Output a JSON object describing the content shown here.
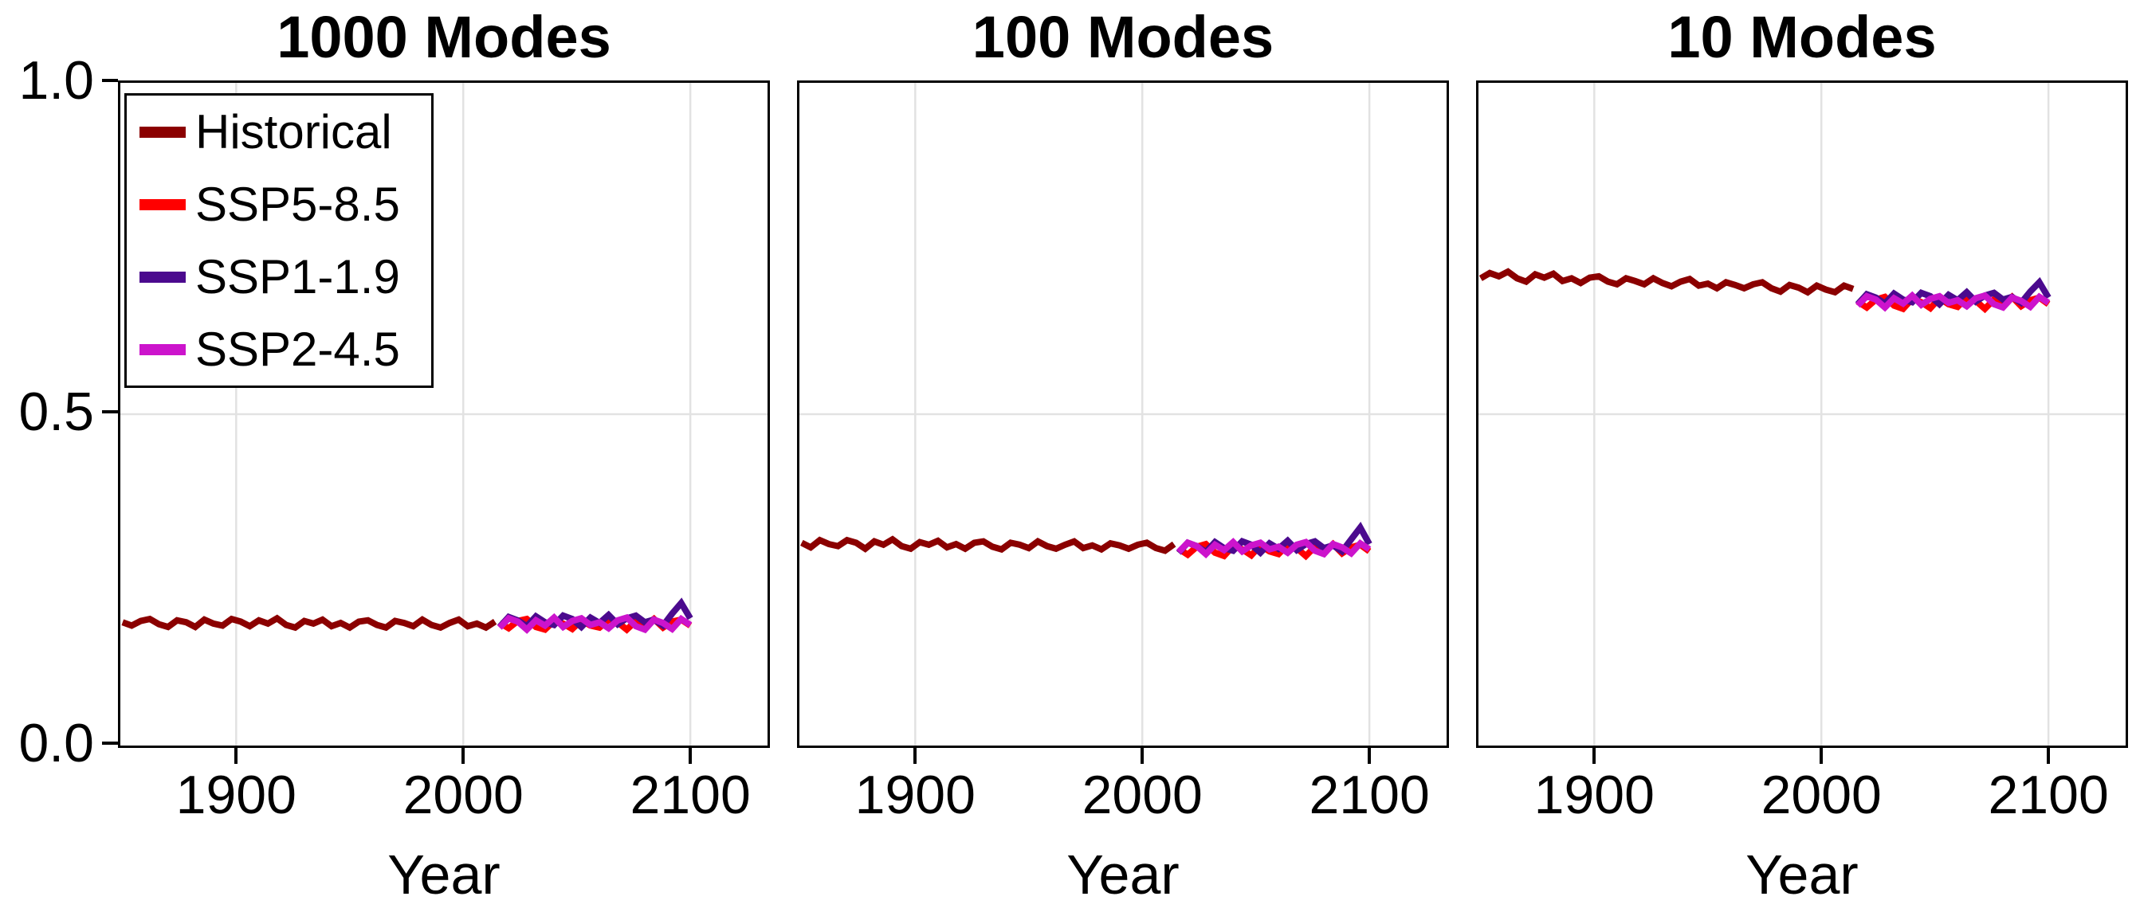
{
  "figure": {
    "background": "#FFFFFF",
    "axis_color": "#000000",
    "grid_color": "#E2E2E2",
    "ytick_labels": [
      "1.0",
      "0.5",
      "0.0"
    ],
    "legend": {
      "position": "upper left",
      "entries": [
        {
          "label": "Historical",
          "color": "#8B0000"
        },
        {
          "label": "SSP5-8.5",
          "color": "#FF0000"
        },
        {
          "label": "SSP1-1.9",
          "color": "#4B0A8E"
        },
        {
          "label": "SSP2-4.5",
          "color": "#CC14CC"
        }
      ]
    }
  },
  "chart_data": [
    {
      "type": "line",
      "title": "1000 Modes",
      "xlabel": "Year",
      "ylabel": "",
      "xlim": [
        1849,
        2134
      ],
      "ylim": [
        0.0,
        1.0
      ],
      "xticks": [
        1900,
        2000,
        2100
      ],
      "xtick_labels": [
        "1900",
        "2000",
        "2100"
      ],
      "yticks": [
        0.0,
        0.5,
        1.0
      ],
      "grid": true,
      "series": [
        {
          "name": "Historical",
          "color": "#8B0000",
          "x_start": 1850,
          "x_step": 4,
          "values": [
            0.186,
            0.181,
            0.188,
            0.191,
            0.183,
            0.179,
            0.189,
            0.186,
            0.179,
            0.19,
            0.184,
            0.181,
            0.191,
            0.187,
            0.18,
            0.189,
            0.184,
            0.192,
            0.182,
            0.178,
            0.188,
            0.184,
            0.19,
            0.18,
            0.185,
            0.178,
            0.187,
            0.189,
            0.182,
            0.178,
            0.188,
            0.185,
            0.18,
            0.19,
            0.182,
            0.178,
            0.185,
            0.19,
            0.18,
            0.184,
            0.178,
            0.187
          ]
        },
        {
          "name": "SSP5-8.5",
          "color": "#FF0000",
          "x_start": 2016,
          "x_step": 4,
          "values": [
            0.185,
            0.177,
            0.188,
            0.191,
            0.179,
            0.175,
            0.188,
            0.184,
            0.176,
            0.189,
            0.181,
            0.178,
            0.19,
            0.186,
            0.175,
            0.188,
            0.18,
            0.191,
            0.178,
            0.187,
            0.19,
            0.181
          ]
        },
        {
          "name": "SSP1-1.9",
          "color": "#4B0A8E",
          "x_start": 2016,
          "x_step": 4,
          "values": [
            0.179,
            0.194,
            0.189,
            0.18,
            0.195,
            0.186,
            0.182,
            0.196,
            0.191,
            0.179,
            0.193,
            0.185,
            0.197,
            0.183,
            0.192,
            0.196,
            0.186,
            0.19,
            0.181,
            0.199,
            0.215,
            0.192
          ]
        },
        {
          "name": "SSP2-4.5",
          "color": "#CC14CC",
          "x_start": 2016,
          "x_step": 4,
          "values": [
            0.178,
            0.192,
            0.187,
            0.175,
            0.189,
            0.181,
            0.193,
            0.179,
            0.188,
            0.192,
            0.182,
            0.186,
            0.177,
            0.189,
            0.193,
            0.18,
            0.175,
            0.19,
            0.185,
            0.176,
            0.191,
            0.182
          ]
        }
      ]
    },
    {
      "type": "line",
      "title": "100 Modes",
      "xlabel": "Year",
      "ylabel": "",
      "xlim": [
        1849,
        2134
      ],
      "ylim": [
        0.0,
        1.0
      ],
      "xticks": [
        1900,
        2000,
        2100
      ],
      "xtick_labels": [
        "1900",
        "2000",
        "2100"
      ],
      "yticks": [
        0.0,
        0.5,
        1.0
      ],
      "grid": true,
      "series": [
        {
          "name": "Historical",
          "color": "#8B0000",
          "x_start": 1850,
          "x_step": 4,
          "values": [
            0.306,
            0.299,
            0.31,
            0.304,
            0.301,
            0.31,
            0.306,
            0.297,
            0.308,
            0.303,
            0.311,
            0.301,
            0.297,
            0.307,
            0.303,
            0.309,
            0.299,
            0.304,
            0.297,
            0.306,
            0.308,
            0.3,
            0.296,
            0.306,
            0.303,
            0.298,
            0.308,
            0.301,
            0.297,
            0.303,
            0.308,
            0.298,
            0.302,
            0.296,
            0.305,
            0.302,
            0.297,
            0.303,
            0.306,
            0.298,
            0.294,
            0.304
          ]
        },
        {
          "name": "SSP5-8.5",
          "color": "#FF0000",
          "x_start": 2016,
          "x_step": 4,
          "values": [
            0.297,
            0.288,
            0.3,
            0.304,
            0.291,
            0.286,
            0.301,
            0.296,
            0.287,
            0.302,
            0.293,
            0.289,
            0.303,
            0.298,
            0.286,
            0.3,
            0.292,
            0.304,
            0.29,
            0.299,
            0.303,
            0.293
          ]
        },
        {
          "name": "SSP1-1.9",
          "color": "#4B0A8E",
          "x_start": 2016,
          "x_step": 4,
          "values": [
            0.291,
            0.306,
            0.301,
            0.292,
            0.307,
            0.298,
            0.294,
            0.308,
            0.303,
            0.291,
            0.305,
            0.297,
            0.309,
            0.295,
            0.304,
            0.308,
            0.298,
            0.302,
            0.293,
            0.311,
            0.329,
            0.304
          ]
        },
        {
          "name": "SSP2-4.5",
          "color": "#CC14CC",
          "x_start": 2016,
          "x_step": 4,
          "values": [
            0.292,
            0.306,
            0.301,
            0.289,
            0.303,
            0.295,
            0.307,
            0.293,
            0.302,
            0.306,
            0.296,
            0.3,
            0.291,
            0.303,
            0.307,
            0.294,
            0.289,
            0.304,
            0.299,
            0.29,
            0.305,
            0.296
          ]
        }
      ]
    },
    {
      "type": "line",
      "title": "10 Modes",
      "xlabel": "Year",
      "ylabel": "",
      "xlim": [
        1849,
        2134
      ],
      "ylim": [
        0.0,
        1.0
      ],
      "xticks": [
        1900,
        2000,
        2100
      ],
      "xtick_labels": [
        "1900",
        "2000",
        "2100"
      ],
      "yticks": [
        0.0,
        0.5,
        1.0
      ],
      "grid": true,
      "series": [
        {
          "name": "Historical",
          "color": "#8B0000",
          "x_start": 1850,
          "x_step": 4,
          "values": [
            0.705,
            0.713,
            0.708,
            0.715,
            0.705,
            0.7,
            0.711,
            0.706,
            0.712,
            0.701,
            0.705,
            0.698,
            0.706,
            0.708,
            0.7,
            0.696,
            0.705,
            0.701,
            0.696,
            0.705,
            0.698,
            0.693,
            0.7,
            0.704,
            0.694,
            0.697,
            0.69,
            0.699,
            0.695,
            0.69,
            0.696,
            0.699,
            0.69,
            0.685,
            0.695,
            0.691,
            0.684,
            0.694,
            0.688,
            0.684,
            0.694,
            0.689
          ]
        },
        {
          "name": "SSP5-8.5",
          "color": "#FF0000",
          "x_start": 2016,
          "x_step": 4,
          "values": [
            0.67,
            0.661,
            0.673,
            0.677,
            0.664,
            0.659,
            0.674,
            0.669,
            0.66,
            0.675,
            0.666,
            0.662,
            0.676,
            0.671,
            0.659,
            0.673,
            0.665,
            0.677,
            0.663,
            0.672,
            0.676,
            0.666
          ]
        },
        {
          "name": "SSP1-1.9",
          "color": "#4B0A8E",
          "x_start": 2016,
          "x_step": 4,
          "values": [
            0.666,
            0.681,
            0.676,
            0.667,
            0.682,
            0.673,
            0.669,
            0.683,
            0.678,
            0.666,
            0.68,
            0.672,
            0.684,
            0.67,
            0.679,
            0.683,
            0.673,
            0.677,
            0.668,
            0.685,
            0.699,
            0.676
          ]
        },
        {
          "name": "SSP2-4.5",
          "color": "#CC14CC",
          "x_start": 2016,
          "x_step": 4,
          "values": [
            0.664,
            0.678,
            0.673,
            0.661,
            0.675,
            0.667,
            0.679,
            0.665,
            0.674,
            0.678,
            0.668,
            0.672,
            0.663,
            0.675,
            0.679,
            0.666,
            0.661,
            0.676,
            0.671,
            0.662,
            0.677,
            0.668
          ]
        }
      ]
    }
  ]
}
